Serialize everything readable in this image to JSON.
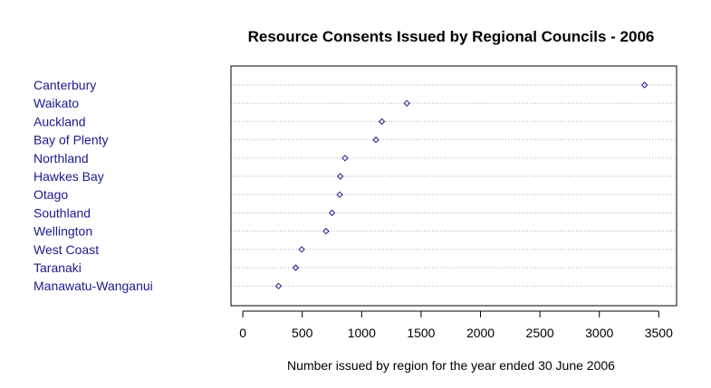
{
  "chart_data": {
    "type": "scatter",
    "subtype": "dot-plot",
    "title": "Resource Consents Issued by Regional Councils - 2006",
    "xlabel": "Number issued by region for the year ended 30 June 2006",
    "ylabel": "",
    "xlim": [
      -100,
      3650
    ],
    "xticks": [
      0,
      500,
      1000,
      1500,
      2000,
      2500,
      3000,
      3500
    ],
    "grid": "horizontal-dotted",
    "legend": "none",
    "colors": {
      "points": "#1a1a8c",
      "labels": "#1a1a8c",
      "grid": "#b0b0b0",
      "frame": "#000000"
    },
    "categories": [
      "Canterbury",
      "Waikato",
      "Auckland",
      "Bay of Plenty",
      "Northland",
      "Hawkes Bay",
      "Otago",
      "Southland",
      "Wellington",
      "West Coast",
      "Taranaki",
      "Manawatu-Wanganui"
    ],
    "values": [
      3380,
      1380,
      1170,
      1120,
      860,
      820,
      815,
      750,
      700,
      495,
      445,
      300
    ]
  }
}
